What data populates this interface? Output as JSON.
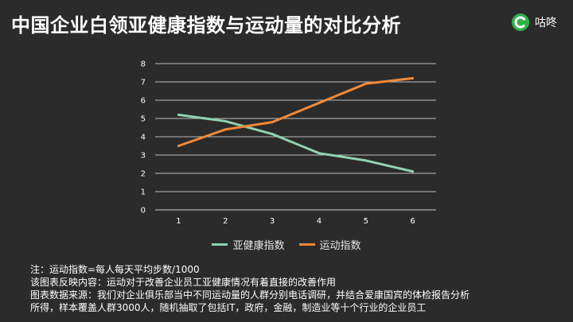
{
  "page": {
    "title": "中国企业白领亚健康指数与运动量的对比分析",
    "brand_name": "咕咚",
    "brand_icon": "brand-logo-icon",
    "brand_color": "#2fb14a"
  },
  "chart_data": {
    "type": "line",
    "x": [
      1,
      2,
      3,
      4,
      5,
      6
    ],
    "y_ticks": [
      0,
      1,
      2,
      3,
      4,
      5,
      6,
      7,
      8
    ],
    "ylim": [
      0,
      8
    ],
    "grid": true,
    "legend_position": "bottom",
    "series": [
      {
        "name": "亚健康指数",
        "color": "#8fd3b0",
        "values": [
          5.2,
          4.85,
          4.15,
          3.1,
          2.7,
          2.1
        ]
      },
      {
        "name": "运动指数",
        "color": "#f0893a",
        "values": [
          3.5,
          4.4,
          4.8,
          5.85,
          6.9,
          7.2
        ]
      }
    ]
  },
  "notes": [
    "注：运动指数=每人每天平均步数/1000",
    "该图表反映内容：运动对于改善企业员工亚健康情况有着直接的改善作用",
    "图表数据来源：我们对企业俱乐部当中不同运动量的人群分别电话调研，并结合爱康国宾的体检报告分析",
    "所得，样本覆盖人群3000人，随机抽取了包括IT，政府，金融，制造业等十个行业的企业员工"
  ]
}
